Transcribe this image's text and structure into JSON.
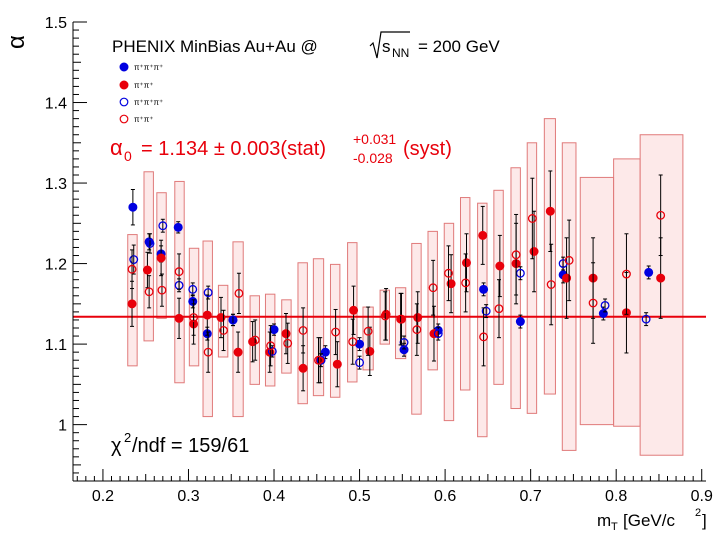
{
  "chart_data": {
    "type": "scatter",
    "title": "",
    "annotation": "PHENIX MinBias Au+Au @",
    "annotation_sqrt": "s",
    "annotation_sub": "NN",
    "annotation_value": "= 200 GeV",
    "xlabel": "m",
    "xlabel_sub": "T",
    "xlabel_unit_a": "[GeV/c",
    "xlabel_unit_sup": "2",
    "xlabel_unit_b": "]",
    "ylabel": "α",
    "xlim": [
      0.165,
      0.905
    ],
    "ylim": [
      0.93,
      1.5
    ],
    "x_ticks": [
      {
        "value": 0.2,
        "label": "0.2"
      },
      {
        "value": 0.3,
        "label": "0.3"
      },
      {
        "value": 0.4,
        "label": "0.4"
      },
      {
        "value": 0.5,
        "label": "0.5"
      },
      {
        "value": 0.6,
        "label": "0.6"
      },
      {
        "value": 0.7,
        "label": "0.7"
      },
      {
        "value": 0.8,
        "label": "0.8"
      },
      {
        "value": 0.9,
        "label": "0.9"
      }
    ],
    "y_ticks": [
      {
        "value": 1.0,
        "label": "1"
      },
      {
        "value": 1.1,
        "label": "1.1"
      },
      {
        "value": 1.2,
        "label": "1.2"
      },
      {
        "value": 1.3,
        "label": "1.3"
      },
      {
        "value": 1.4,
        "label": "1.4"
      },
      {
        "value": 1.5,
        "label": "1.5"
      }
    ],
    "fit": {
      "value": 1.134,
      "alpha_symbol": "α",
      "alpha_sub": "0",
      "text_main": "= 1.134 ± 0.003(stat)",
      "text_sup": "+0.031",
      "text_sub": "-0.028",
      "text_end": "(syst)",
      "color": "#e8000b"
    },
    "chi2": {
      "symbol": "χ",
      "sup": "2",
      "text": "/ndf = 159/61"
    },
    "legend": [
      {
        "label": "π⁺π⁺π⁺",
        "marker": "filled",
        "color": "#0000e0"
      },
      {
        "label": "π⁺π⁺",
        "marker": "filled",
        "color": "#e8000b"
      },
      {
        "label": "π⁺π⁺π⁺",
        "marker": "open",
        "color": "#0000e0"
      },
      {
        "label": "π⁺π⁺",
        "marker": "open",
        "color": "#e8000b"
      }
    ],
    "series": [
      {
        "name": "π⁺π⁺π⁺",
        "marker": "filled",
        "color": "#0000e0",
        "x": [
          0.235,
          0.254,
          0.268,
          0.288,
          0.305,
          0.322,
          0.352,
          0.4,
          0.46,
          0.5,
          0.552,
          0.592,
          0.645,
          0.688,
          0.738,
          0.785,
          0.838
        ],
        "y": [
          1.27,
          1.227,
          1.212,
          1.245,
          1.153,
          1.113,
          1.13,
          1.118,
          1.09,
          1.1,
          1.093,
          1.117,
          1.168,
          1.128,
          1.186,
          1.138,
          1.189
        ],
        "err": [
          0.022,
          0.01,
          0.01,
          0.007,
          0.008,
          0.008,
          0.007,
          0.007,
          0.008,
          0.008,
          0.008,
          0.008,
          0.008,
          0.008,
          0.01,
          0.008,
          0.008
        ]
      },
      {
        "name": "π⁺π⁺",
        "marker": "filled",
        "color": "#e8000b",
        "x": [
          0.234,
          0.252,
          0.268,
          0.289,
          0.306,
          0.322,
          0.338,
          0.358,
          0.375,
          0.395,
          0.414,
          0.434,
          0.454,
          0.474,
          0.493,
          0.512,
          0.531,
          0.549,
          0.568,
          0.587,
          0.607,
          0.625,
          0.644,
          0.664,
          0.683,
          0.704,
          0.723,
          0.742,
          0.773,
          0.812,
          0.852
        ],
        "y": [
          1.15,
          1.192,
          1.207,
          1.132,
          1.125,
          1.136,
          1.133,
          1.09,
          1.103,
          1.09,
          1.113,
          1.07,
          1.08,
          1.075,
          1.142,
          1.091,
          1.137,
          1.131,
          1.133,
          1.113,
          1.175,
          1.201,
          1.235,
          1.197,
          1.2,
          1.215,
          1.265,
          1.182,
          1.182,
          1.139,
          1.182
        ],
        "err": [
          0.028,
          0.022,
          0.022,
          0.025,
          0.025,
          0.025,
          0.025,
          0.025,
          0.025,
          0.025,
          0.025,
          0.028,
          0.028,
          0.028,
          0.03,
          0.03,
          0.032,
          0.032,
          0.032,
          0.034,
          0.036,
          0.036,
          0.036,
          0.038,
          0.05,
          0.05,
          0.05,
          0.05,
          0.05,
          0.05,
          0.05
        ]
      },
      {
        "name": "π⁺π⁺π⁺",
        "marker": "open",
        "color": "#0000e0",
        "x": [
          0.236,
          0.255,
          0.27,
          0.289,
          0.305,
          0.323,
          0.352,
          0.398,
          0.455,
          0.5,
          0.552,
          0.592,
          0.648,
          0.688,
          0.738,
          0.787,
          0.835
        ],
        "y": [
          1.205,
          1.225,
          1.247,
          1.173,
          1.168,
          1.164,
          1.13,
          1.091,
          1.08,
          1.077,
          1.102,
          1.113,
          1.141,
          1.188,
          1.2,
          1.148,
          1.131
        ],
        "err": [
          0.018,
          0.012,
          0.008,
          0.008,
          0.008,
          0.008,
          0.007,
          0.007,
          0.008,
          0.008,
          0.008,
          0.008,
          0.008,
          0.008,
          0.008,
          0.008,
          0.008
        ]
      },
      {
        "name": "π⁺π⁺",
        "marker": "open",
        "color": "#e8000b",
        "x": [
          0.234,
          0.254,
          0.269,
          0.289,
          0.306,
          0.323,
          0.341,
          0.359,
          0.378,
          0.396,
          0.416,
          0.434,
          0.452,
          0.472,
          0.492,
          0.51,
          0.53,
          0.548,
          0.567,
          0.586,
          0.604,
          0.624,
          0.645,
          0.663,
          0.683,
          0.702,
          0.724,
          0.745,
          0.773,
          0.812,
          0.852
        ],
        "y": [
          1.193,
          1.165,
          1.167,
          1.19,
          1.133,
          1.09,
          1.117,
          1.163,
          1.105,
          1.098,
          1.101,
          1.117,
          1.08,
          1.115,
          1.103,
          1.116,
          1.135,
          1.131,
          1.118,
          1.17,
          1.188,
          1.176,
          1.109,
          1.144,
          1.211,
          1.256,
          1.174,
          1.204,
          1.151,
          1.187,
          1.26
        ],
        "err": [
          0.024,
          0.02,
          0.02,
          0.022,
          0.022,
          0.025,
          0.025,
          0.025,
          0.025,
          0.025,
          0.025,
          0.028,
          0.028,
          0.028,
          0.028,
          0.03,
          0.03,
          0.032,
          0.032,
          0.034,
          0.034,
          0.036,
          0.036,
          0.036,
          0.05,
          0.05,
          0.05,
          0.05,
          0.05,
          0.05,
          0.05
        ]
      }
    ],
    "systematics": {
      "color": "#e07a7a",
      "fill": "#fce0e0",
      "boxes": [
        {
          "x0": 0.229,
          "x1": 0.24,
          "y0": 1.073,
          "y1": 1.236
        },
        {
          "x0": 0.248,
          "x1": 0.259,
          "y0": 1.104,
          "y1": 1.314
        },
        {
          "x0": 0.263,
          "x1": 0.274,
          "y0": 1.132,
          "y1": 1.288
        },
        {
          "x0": 0.284,
          "x1": 0.295,
          "y0": 1.052,
          "y1": 1.302
        },
        {
          "x0": 0.301,
          "x1": 0.312,
          "y0": 1.073,
          "y1": 1.219
        },
        {
          "x0": 0.317,
          "x1": 0.328,
          "y0": 1.01,
          "y1": 1.228
        },
        {
          "x0": 0.335,
          "x1": 0.346,
          "y0": 1.084,
          "y1": 1.173
        },
        {
          "x0": 0.352,
          "x1": 0.364,
          "y0": 1.01,
          "y1": 1.227
        },
        {
          "x0": 0.372,
          "x1": 0.383,
          "y0": 1.05,
          "y1": 1.16
        },
        {
          "x0": 0.39,
          "x1": 0.401,
          "y0": 1.048,
          "y1": 1.162
        },
        {
          "x0": 0.409,
          "x1": 0.42,
          "y0": 1.064,
          "y1": 1.155
        },
        {
          "x0": 0.428,
          "x1": 0.439,
          "y0": 1.026,
          "y1": 1.201
        },
        {
          "x0": 0.446,
          "x1": 0.458,
          "y0": 1.036,
          "y1": 1.206
        },
        {
          "x0": 0.466,
          "x1": 0.477,
          "y0": 1.034,
          "y1": 1.199
        },
        {
          "x0": 0.486,
          "x1": 0.497,
          "y0": 1.053,
          "y1": 1.226
        },
        {
          "x0": 0.504,
          "x1": 0.516,
          "y0": 1.068,
          "y1": 1.146
        },
        {
          "x0": 0.524,
          "x1": 0.535,
          "y0": 1.1,
          "y1": 1.167
        },
        {
          "x0": 0.542,
          "x1": 0.554,
          "y0": 1.082,
          "y1": 1.17
        },
        {
          "x0": 0.561,
          "x1": 0.572,
          "y0": 1.013,
          "y1": 1.225
        },
        {
          "x0": 0.58,
          "x1": 0.591,
          "y0": 1.068,
          "y1": 1.24
        },
        {
          "x0": 0.599,
          "x1": 0.61,
          "y0": 1.005,
          "y1": 1.25
        },
        {
          "x0": 0.618,
          "x1": 0.629,
          "y0": 1.043,
          "y1": 1.282
        },
        {
          "x0": 0.638,
          "x1": 0.649,
          "y0": 0.985,
          "y1": 1.275
        },
        {
          "x0": 0.657,
          "x1": 0.668,
          "y0": 1.05,
          "y1": 1.291
        },
        {
          "x0": 0.677,
          "x1": 0.688,
          "y0": 1.02,
          "y1": 1.319
        },
        {
          "x0": 0.696,
          "x1": 0.707,
          "y0": 1.014,
          "y1": 1.35
        },
        {
          "x0": 0.716,
          "x1": 0.729,
          "y0": 1.038,
          "y1": 1.38
        },
        {
          "x0": 0.737,
          "x1": 0.753,
          "y0": 0.968,
          "y1": 1.35
        },
        {
          "x0": 0.758,
          "x1": 0.797,
          "y0": 1.0,
          "y1": 1.307
        },
        {
          "x0": 0.797,
          "x1": 0.828,
          "y0": 0.998,
          "y1": 1.33
        },
        {
          "x0": 0.828,
          "x1": 0.878,
          "y0": 0.962,
          "y1": 1.36
        }
      ]
    }
  }
}
